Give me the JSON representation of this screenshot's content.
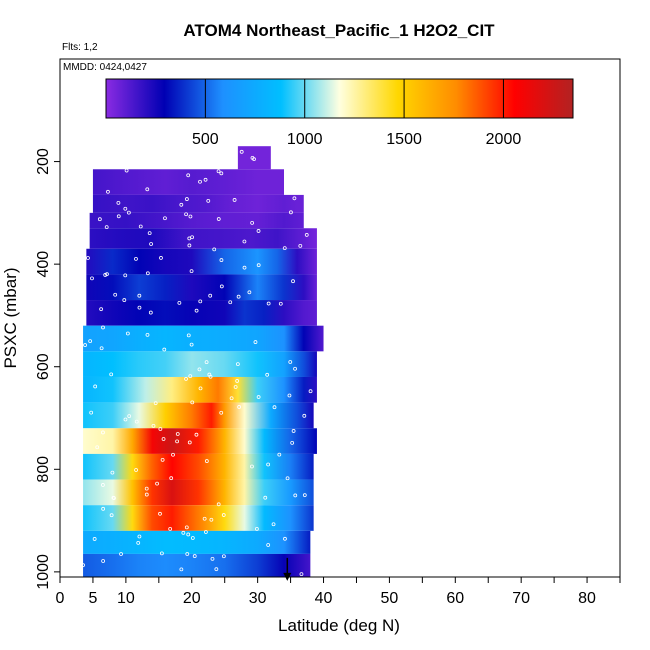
{
  "chart_data": {
    "type": "heatmap",
    "title": "ATOM4 Northeast_Pacific_1 H2O2_CIT",
    "flights_label": "Flts: 1,2",
    "dates_label": "MMDD: 0424,0427",
    "xlabel": "Latitude (deg N)",
    "ylabel": "PSXC (mbar)",
    "xlim": [
      0,
      85
    ],
    "ylim": [
      1010,
      0
    ],
    "x_ticks": [
      0,
      5,
      10,
      20,
      30,
      40,
      50,
      60,
      70,
      80
    ],
    "y_ticks": [
      200,
      400,
      600,
      800,
      1000
    ],
    "colorbar": {
      "range": [
        0,
        2350
      ],
      "ticks": [
        500,
        1000,
        1500,
        2000
      ],
      "colors": [
        "#8a2be2",
        "#0000b3",
        "#1e90ff",
        "#00bfff",
        "#ffffe0",
        "#ffd700",
        "#ff8c00",
        "#ff0000",
        "#b22222"
      ]
    },
    "layers": [
      {
        "p_top": 170,
        "p_bot": 215,
        "lat_min": 27,
        "lat_max": 32,
        "points": [
          [
            27,
            50
          ],
          [
            31,
            50
          ]
        ]
      },
      {
        "p_top": 215,
        "p_bot": 265,
        "lat_min": 5,
        "lat_max": 34,
        "points": [
          [
            5,
            150
          ],
          [
            10,
            120
          ],
          [
            16,
            90
          ],
          [
            20,
            110
          ],
          [
            25,
            90
          ],
          [
            30,
            60
          ],
          [
            33,
            60
          ]
        ]
      },
      {
        "p_top": 265,
        "p_bot": 300,
        "lat_min": 5,
        "lat_max": 37,
        "points": [
          [
            5,
            180
          ],
          [
            10,
            160
          ],
          [
            14,
            170
          ],
          [
            18,
            140
          ],
          [
            22,
            120
          ],
          [
            26,
            80
          ],
          [
            30,
            60
          ],
          [
            34,
            90
          ],
          [
            36,
            70
          ]
        ]
      },
      {
        "p_top": 300,
        "p_bot": 330,
        "lat_min": 4.5,
        "lat_max": 37,
        "points": [
          [
            4.5,
            170
          ],
          [
            10,
            180
          ],
          [
            15,
            150
          ],
          [
            20,
            110
          ],
          [
            25,
            90
          ],
          [
            30,
            80
          ],
          [
            34,
            120
          ],
          [
            37,
            90
          ]
        ]
      },
      {
        "p_top": 330,
        "p_bot": 370,
        "lat_min": 4.5,
        "lat_max": 39,
        "points": [
          [
            4.5,
            200
          ],
          [
            9,
            220
          ],
          [
            14,
            230
          ],
          [
            19,
            160
          ],
          [
            24,
            150
          ],
          [
            29,
            130
          ],
          [
            33,
            160
          ],
          [
            37,
            90
          ],
          [
            39,
            40
          ]
        ]
      },
      {
        "p_top": 370,
        "p_bot": 420,
        "lat_min": 4,
        "lat_max": 39,
        "points": [
          [
            4,
            220
          ],
          [
            8,
            380
          ],
          [
            12,
            300
          ],
          [
            16,
            250
          ],
          [
            20,
            230
          ],
          [
            25,
            500
          ],
          [
            30,
            620
          ],
          [
            33,
            500
          ],
          [
            36,
            200
          ],
          [
            39,
            60
          ]
        ]
      },
      {
        "p_top": 420,
        "p_bot": 470,
        "lat_min": 4,
        "lat_max": 39,
        "points": [
          [
            4,
            260
          ],
          [
            8,
            320
          ],
          [
            12,
            420
          ],
          [
            16,
            360
          ],
          [
            20,
            230
          ],
          [
            25,
            300
          ],
          [
            30,
            560
          ],
          [
            34,
            400
          ],
          [
            37,
            200
          ],
          [
            39,
            70
          ]
        ]
      },
      {
        "p_top": 470,
        "p_bot": 520,
        "lat_min": 4,
        "lat_max": 39,
        "points": [
          [
            4,
            220
          ],
          [
            8,
            260
          ],
          [
            12,
            300
          ],
          [
            16,
            320
          ],
          [
            20,
            280
          ],
          [
            25,
            260
          ],
          [
            28,
            400
          ],
          [
            31,
            360
          ],
          [
            34,
            200
          ],
          [
            37,
            120
          ],
          [
            39,
            90
          ]
        ]
      },
      {
        "p_top": 520,
        "p_bot": 570,
        "lat_min": 3.5,
        "lat_max": 40,
        "points": [
          [
            3.5,
            700
          ],
          [
            8,
            720
          ],
          [
            12,
            780
          ],
          [
            16,
            820
          ],
          [
            20,
            780
          ],
          [
            25,
            760
          ],
          [
            30,
            720
          ],
          [
            34,
            600
          ],
          [
            37,
            300
          ],
          [
            40,
            120
          ]
        ]
      },
      {
        "p_top": 570,
        "p_bot": 620,
        "lat_min": 3.5,
        "lat_max": 39,
        "points": [
          [
            3.5,
            820
          ],
          [
            8,
            880
          ],
          [
            12,
            930
          ],
          [
            16,
            960
          ],
          [
            20,
            1050
          ],
          [
            25,
            1000
          ],
          [
            30,
            900
          ],
          [
            34,
            700
          ],
          [
            37,
            450
          ],
          [
            39,
            250
          ]
        ]
      },
      {
        "p_top": 620,
        "p_bot": 670,
        "lat_min": 3.5,
        "lat_max": 39,
        "points": [
          [
            3.5,
            820
          ],
          [
            8,
            900
          ],
          [
            13,
            1100
          ],
          [
            17,
            1300
          ],
          [
            21,
            1600
          ],
          [
            24,
            1800
          ],
          [
            27,
            1400
          ],
          [
            30,
            950
          ],
          [
            34,
            600
          ],
          [
            37,
            350
          ],
          [
            39,
            200
          ]
        ]
      },
      {
        "p_top": 670,
        "p_bot": 720,
        "lat_min": 3.5,
        "lat_max": 38.5,
        "points": [
          [
            3.5,
            900
          ],
          [
            8,
            950
          ],
          [
            12,
            1150
          ],
          [
            16,
            1500
          ],
          [
            20,
            1800
          ],
          [
            23,
            2000
          ],
          [
            25,
            1700
          ],
          [
            28,
            1200
          ],
          [
            32,
            750
          ],
          [
            36,
            450
          ],
          [
            38.5,
            250
          ]
        ]
      },
      {
        "p_top": 720,
        "p_bot": 770,
        "lat_min": 3.5,
        "lat_max": 39,
        "points": [
          [
            3.5,
            1200
          ],
          [
            8,
            1250
          ],
          [
            11,
            1650
          ],
          [
            14,
            2100
          ],
          [
            17,
            2250
          ],
          [
            21,
            2000
          ],
          [
            25,
            1600
          ],
          [
            28,
            1200
          ],
          [
            31,
            850
          ],
          [
            35,
            500
          ],
          [
            39,
            300
          ]
        ]
      },
      {
        "p_top": 770,
        "p_bot": 820,
        "lat_min": 3.5,
        "lat_max": 38.5,
        "points": [
          [
            3.5,
            900
          ],
          [
            8,
            1000
          ],
          [
            11,
            1450
          ],
          [
            14,
            1850
          ],
          [
            17,
            2050
          ],
          [
            21,
            1900
          ],
          [
            25,
            1600
          ],
          [
            28,
            1250
          ],
          [
            31,
            900
          ],
          [
            35,
            550
          ],
          [
            38.5,
            350
          ]
        ]
      },
      {
        "p_top": 820,
        "p_bot": 870,
        "lat_min": 3.5,
        "lat_max": 38.5,
        "points": [
          [
            3.5,
            1050
          ],
          [
            8,
            1150
          ],
          [
            11,
            1550
          ],
          [
            14,
            1950
          ],
          [
            17,
            2200
          ],
          [
            21,
            1950
          ],
          [
            25,
            1600
          ],
          [
            28,
            1250
          ],
          [
            31,
            950
          ],
          [
            35,
            650
          ],
          [
            38.5,
            450
          ]
        ]
      },
      {
        "p_top": 870,
        "p_bot": 920,
        "lat_min": 3.5,
        "lat_max": 38.5,
        "points": [
          [
            3.5,
            900
          ],
          [
            8,
            1000
          ],
          [
            11,
            1450
          ],
          [
            14,
            1900
          ],
          [
            17,
            2000
          ],
          [
            21,
            1800
          ],
          [
            25,
            1450
          ],
          [
            28,
            1150
          ],
          [
            31,
            850
          ],
          [
            35,
            600
          ],
          [
            38.5,
            400
          ]
        ]
      },
      {
        "p_top": 920,
        "p_bot": 965,
        "lat_min": 3.5,
        "lat_max": 38,
        "points": [
          [
            3.5,
            750
          ],
          [
            8,
            780
          ],
          [
            12,
            820
          ],
          [
            16,
            860
          ],
          [
            20,
            850
          ],
          [
            25,
            820
          ],
          [
            30,
            750
          ],
          [
            34,
            600
          ],
          [
            38,
            350
          ]
        ]
      },
      {
        "p_top": 965,
        "p_bot": 1010,
        "lat_min": 3.5,
        "lat_max": 38,
        "points": [
          [
            3.5,
            480
          ],
          [
            8,
            520
          ],
          [
            12,
            560
          ],
          [
            16,
            580
          ],
          [
            20,
            560
          ],
          [
            25,
            520
          ],
          [
            30,
            420
          ],
          [
            34,
            280
          ],
          [
            38,
            150
          ]
        ]
      }
    ],
    "marker": {
      "lat": 34.5,
      "pressure": 1000
    }
  }
}
